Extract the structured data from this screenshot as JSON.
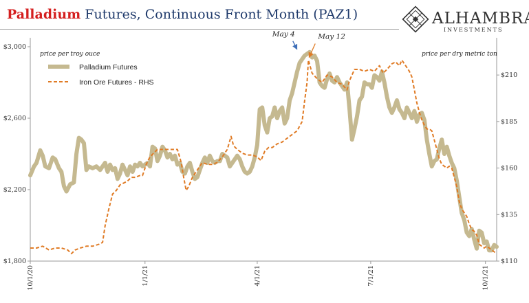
{
  "header": {
    "title_highlight": "Palladium",
    "title_rest": " Futures, Continuous Front Month (PAZ1)",
    "logo_name": "ALHAMBRA",
    "logo_sub": "INVESTMENTS"
  },
  "colors": {
    "palladium": "#c5b990",
    "iron_ore": "#e07b25",
    "title_highlight": "#d41f1f",
    "title": "#1f3a6b"
  },
  "chart_data": {
    "type": "line",
    "left_axis_label": "price per troy ouce",
    "right_axis_label": "price per dry metric ton",
    "left_ylim": [
      1800,
      3050
    ],
    "right_ylim": [
      110,
      230
    ],
    "left_ticks": [
      "$1,800",
      "$2,200",
      "$2,600",
      "$3,000"
    ],
    "left_tick_values": [
      1800,
      2200,
      2600,
      3000
    ],
    "right_ticks": [
      "$110",
      "$135",
      "$160",
      "$185",
      "$210"
    ],
    "right_tick_values": [
      110,
      135,
      160,
      185,
      210
    ],
    "x_ticks": [
      "10/1/20",
      "1/1/21",
      "4/1/21",
      "7/1/21",
      "10/1/21"
    ],
    "x_tick_days": [
      0,
      92,
      182,
      273,
      365
    ],
    "annotations": [
      {
        "label": "May 4",
        "day": 215,
        "value": 2970,
        "axis": "left"
      },
      {
        "label": "May 12",
        "day": 223,
        "value": 218,
        "axis": "right"
      }
    ],
    "series": [
      {
        "name": "Palladium Futures",
        "axis": "left",
        "points": [
          [
            0,
            2280
          ],
          [
            3,
            2330
          ],
          [
            5,
            2350
          ],
          [
            8,
            2420
          ],
          [
            10,
            2390
          ],
          [
            12,
            2330
          ],
          [
            15,
            2320
          ],
          [
            18,
            2380
          ],
          [
            20,
            2370
          ],
          [
            23,
            2320
          ],
          [
            25,
            2300
          ],
          [
            27,
            2220
          ],
          [
            29,
            2190
          ],
          [
            32,
            2230
          ],
          [
            35,
            2240
          ],
          [
            37,
            2400
          ],
          [
            39,
            2490
          ],
          [
            41,
            2480
          ],
          [
            43,
            2460
          ],
          [
            45,
            2310
          ],
          [
            47,
            2330
          ],
          [
            50,
            2320
          ],
          [
            53,
            2330
          ],
          [
            56,
            2310
          ],
          [
            58,
            2330
          ],
          [
            60,
            2350
          ],
          [
            62,
            2300
          ],
          [
            64,
            2340
          ],
          [
            66,
            2310
          ],
          [
            68,
            2320
          ],
          [
            70,
            2260
          ],
          [
            72,
            2290
          ],
          [
            74,
            2340
          ],
          [
            76,
            2310
          ],
          [
            78,
            2280
          ],
          [
            80,
            2330
          ],
          [
            82,
            2300
          ],
          [
            84,
            2340
          ],
          [
            86,
            2330
          ],
          [
            88,
            2350
          ],
          [
            90,
            2330
          ],
          [
            92,
            2340
          ],
          [
            94,
            2350
          ],
          [
            96,
            2330
          ],
          [
            98,
            2440
          ],
          [
            100,
            2430
          ],
          [
            102,
            2360
          ],
          [
            104,
            2390
          ],
          [
            106,
            2440
          ],
          [
            108,
            2420
          ],
          [
            110,
            2380
          ],
          [
            112,
            2400
          ],
          [
            114,
            2370
          ],
          [
            116,
            2390
          ],
          [
            118,
            2340
          ],
          [
            120,
            2350
          ],
          [
            122,
            2300
          ],
          [
            124,
            2290
          ],
          [
            126,
            2330
          ],
          [
            128,
            2350
          ],
          [
            130,
            2300
          ],
          [
            132,
            2260
          ],
          [
            134,
            2270
          ],
          [
            136,
            2310
          ],
          [
            138,
            2350
          ],
          [
            140,
            2380
          ],
          [
            142,
            2350
          ],
          [
            144,
            2390
          ],
          [
            146,
            2360
          ],
          [
            148,
            2350
          ],
          [
            150,
            2360
          ],
          [
            152,
            2360
          ],
          [
            154,
            2400
          ],
          [
            156,
            2390
          ],
          [
            158,
            2380
          ],
          [
            160,
            2330
          ],
          [
            162,
            2350
          ],
          [
            164,
            2370
          ],
          [
            166,
            2390
          ],
          [
            168,
            2370
          ],
          [
            170,
            2330
          ],
          [
            172,
            2300
          ],
          [
            174,
            2290
          ],
          [
            176,
            2300
          ],
          [
            178,
            2330
          ],
          [
            180,
            2380
          ],
          [
            182,
            2450
          ],
          [
            184,
            2650
          ],
          [
            186,
            2660
          ],
          [
            188,
            2560
          ],
          [
            190,
            2520
          ],
          [
            192,
            2600
          ],
          [
            194,
            2610
          ],
          [
            196,
            2660
          ],
          [
            198,
            2600
          ],
          [
            200,
            2640
          ],
          [
            202,
            2660
          ],
          [
            204,
            2570
          ],
          [
            206,
            2600
          ],
          [
            208,
            2700
          ],
          [
            210,
            2740
          ],
          [
            212,
            2800
          ],
          [
            214,
            2860
          ],
          [
            216,
            2910
          ],
          [
            218,
            2930
          ],
          [
            220,
            2950
          ],
          [
            222,
            2960
          ],
          [
            224,
            2970
          ],
          [
            226,
            2940
          ],
          [
            228,
            2950
          ],
          [
            230,
            2920
          ],
          [
            232,
            2800
          ],
          [
            234,
            2780
          ],
          [
            236,
            2770
          ],
          [
            238,
            2820
          ],
          [
            240,
            2850
          ],
          [
            242,
            2810
          ],
          [
            244,
            2800
          ],
          [
            246,
            2830
          ],
          [
            248,
            2800
          ],
          [
            250,
            2780
          ],
          [
            252,
            2760
          ],
          [
            254,
            2800
          ],
          [
            256,
            2650
          ],
          [
            258,
            2480
          ],
          [
            260,
            2540
          ],
          [
            262,
            2610
          ],
          [
            264,
            2700
          ],
          [
            266,
            2720
          ],
          [
            268,
            2800
          ],
          [
            270,
            2790
          ],
          [
            272,
            2790
          ],
          [
            274,
            2770
          ],
          [
            276,
            2840
          ],
          [
            278,
            2830
          ],
          [
            280,
            2810
          ],
          [
            282,
            2860
          ],
          [
            284,
            2800
          ],
          [
            286,
            2720
          ],
          [
            288,
            2660
          ],
          [
            290,
            2630
          ],
          [
            292,
            2660
          ],
          [
            294,
            2700
          ],
          [
            296,
            2650
          ],
          [
            298,
            2630
          ],
          [
            300,
            2600
          ],
          [
            302,
            2660
          ],
          [
            304,
            2630
          ],
          [
            306,
            2600
          ],
          [
            308,
            2640
          ],
          [
            310,
            2580
          ],
          [
            312,
            2620
          ],
          [
            314,
            2630
          ],
          [
            316,
            2590
          ],
          [
            318,
            2480
          ],
          [
            320,
            2400
          ],
          [
            322,
            2330
          ],
          [
            324,
            2360
          ],
          [
            326,
            2370
          ],
          [
            328,
            2430
          ],
          [
            330,
            2480
          ],
          [
            332,
            2400
          ],
          [
            334,
            2440
          ],
          [
            336,
            2390
          ],
          [
            338,
            2350
          ],
          [
            340,
            2320
          ],
          [
            342,
            2250
          ],
          [
            344,
            2160
          ],
          [
            346,
            2070
          ],
          [
            348,
            2030
          ],
          [
            350,
            1960
          ],
          [
            352,
            1940
          ],
          [
            354,
            1980
          ],
          [
            356,
            1920
          ],
          [
            358,
            1870
          ],
          [
            360,
            1970
          ],
          [
            362,
            1960
          ],
          [
            364,
            1900
          ],
          [
            366,
            1910
          ],
          [
            368,
            1860
          ],
          [
            370,
            1860
          ],
          [
            372,
            1890
          ],
          [
            374,
            1880
          ]
        ]
      },
      {
        "name": "Iron Ore Futures - RHS",
        "axis": "right",
        "points": [
          [
            0,
            117
          ],
          [
            5,
            117
          ],
          [
            10,
            118
          ],
          [
            15,
            116
          ],
          [
            20,
            117
          ],
          [
            25,
            117
          ],
          [
            30,
            116
          ],
          [
            33,
            114
          ],
          [
            36,
            116
          ],
          [
            40,
            117
          ],
          [
            45,
            118
          ],
          [
            50,
            118
          ],
          [
            55,
            119
          ],
          [
            58,
            120
          ],
          [
            60,
            129
          ],
          [
            63,
            138
          ],
          [
            66,
            146
          ],
          [
            69,
            148
          ],
          [
            72,
            151
          ],
          [
            75,
            152
          ],
          [
            78,
            153
          ],
          [
            81,
            155
          ],
          [
            84,
            155
          ],
          [
            88,
            156
          ],
          [
            90,
            156
          ],
          [
            93,
            162
          ],
          [
            96,
            166
          ],
          [
            99,
            168
          ],
          [
            102,
            170
          ],
          [
            106,
            170
          ],
          [
            110,
            170
          ],
          [
            114,
            170
          ],
          [
            118,
            170
          ],
          [
            121,
            163
          ],
          [
            123,
            155
          ],
          [
            125,
            148
          ],
          [
            127,
            150
          ],
          [
            130,
            155
          ],
          [
            134,
            159
          ],
          [
            138,
            163
          ],
          [
            142,
            162
          ],
          [
            146,
            162
          ],
          [
            150,
            163
          ],
          [
            154,
            166
          ],
          [
            158,
            170
          ],
          [
            161,
            177
          ],
          [
            163,
            172
          ],
          [
            166,
            170
          ],
          [
            170,
            168
          ],
          [
            174,
            167
          ],
          [
            178,
            167
          ],
          [
            182,
            166
          ],
          [
            185,
            164
          ],
          [
            188,
            169
          ],
          [
            191,
            171
          ],
          [
            194,
            171
          ],
          [
            198,
            173
          ],
          [
            202,
            174
          ],
          [
            206,
            176
          ],
          [
            210,
            178
          ],
          [
            214,
            180
          ],
          [
            218,
            185
          ],
          [
            220,
            196
          ],
          [
            222,
            206
          ],
          [
            223,
            218
          ],
          [
            226,
            211
          ],
          [
            230,
            208
          ],
          [
            234,
            206
          ],
          [
            238,
            210
          ],
          [
            242,
            209
          ],
          [
            246,
            206
          ],
          [
            250,
            205
          ],
          [
            254,
            202
          ],
          [
            256,
            207
          ],
          [
            260,
            213
          ],
          [
            264,
            213
          ],
          [
            268,
            212
          ],
          [
            272,
            213
          ],
          [
            276,
            212
          ],
          [
            280,
            215
          ],
          [
            283,
            211
          ],
          [
            286,
            213
          ],
          [
            290,
            216
          ],
          [
            293,
            217
          ],
          [
            296,
            215
          ],
          [
            298,
            218
          ],
          [
            300,
            216
          ],
          [
            302,
            214
          ],
          [
            304,
            212
          ],
          [
            306,
            209
          ],
          [
            308,
            202
          ],
          [
            310,
            195
          ],
          [
            312,
            190
          ],
          [
            314,
            186
          ],
          [
            316,
            183
          ],
          [
            318,
            181
          ],
          [
            320,
            181
          ],
          [
            322,
            180
          ],
          [
            324,
            175
          ],
          [
            326,
            170
          ],
          [
            328,
            165
          ],
          [
            330,
            162
          ],
          [
            332,
            161
          ],
          [
            334,
            160
          ],
          [
            336,
            161
          ],
          [
            338,
            160
          ],
          [
            340,
            155
          ],
          [
            342,
            150
          ],
          [
            344,
            142
          ],
          [
            346,
            138
          ],
          [
            348,
            136
          ],
          [
            350,
            134
          ],
          [
            352,
            130
          ],
          [
            354,
            127
          ],
          [
            356,
            126
          ],
          [
            358,
            124
          ],
          [
            360,
            119
          ],
          [
            362,
            118
          ],
          [
            364,
            117
          ],
          [
            366,
            118
          ],
          [
            368,
            117
          ],
          [
            370,
            116
          ],
          [
            372,
            115
          ],
          [
            374,
            114
          ]
        ]
      }
    ]
  }
}
